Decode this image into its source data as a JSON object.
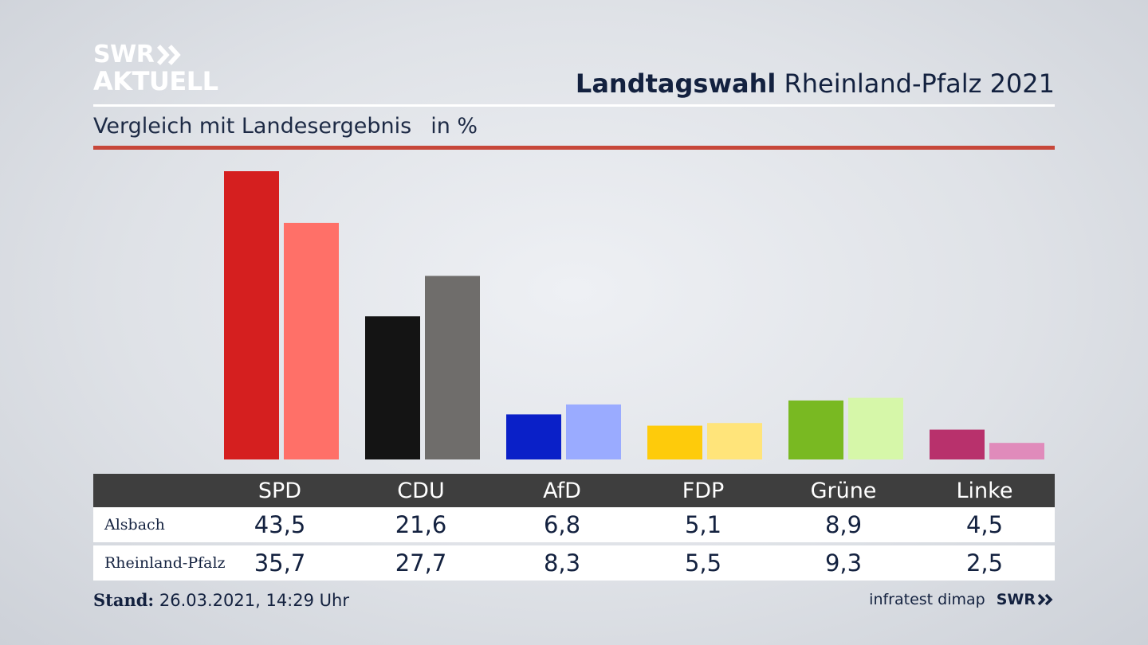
{
  "brand": {
    "logo_line1": "SWR",
    "logo_line2": "AKTUELL",
    "footer_logo": "SWR",
    "source": "infratest dimap"
  },
  "header": {
    "title_bold": "Landtagswahl",
    "title_rest": "Rheinland-Pfalz 2021",
    "subtitle": "Vergleich mit Landesergebnis",
    "unit": "in %"
  },
  "footer": {
    "stand_label": "Stand:",
    "stand_value": "26.03.2021, 14:29 Uhr"
  },
  "chart_data": {
    "type": "bar",
    "categories": [
      "SPD",
      "CDU",
      "AfD",
      "FDP",
      "Grüne",
      "Linke"
    ],
    "series": [
      {
        "name": "Alsbach",
        "values": [
          43.5,
          21.6,
          6.8,
          5.1,
          8.9,
          4.5
        ],
        "colors": [
          "#d51f1f",
          "#141414",
          "#0a20c8",
          "#fecb0b",
          "#79b922",
          "#b8316c"
        ]
      },
      {
        "name": "Rheinland-Pfalz",
        "values": [
          35.7,
          27.7,
          8.3,
          5.5,
          9.3,
          2.5
        ],
        "colors": [
          "#ff7068",
          "#6f6d6b",
          "#9aabff",
          "#ffe47a",
          "#d6f7a9",
          "#e08bbb"
        ]
      }
    ],
    "ylim": [
      0,
      43.5
    ],
    "grid": false,
    "legend": "table-below"
  },
  "table": {
    "row_labels": [
      "Alsbach",
      "Rheinland-Pfalz"
    ],
    "rows": [
      [
        "43,5",
        "21,6",
        "6,8",
        "5,1",
        "8,9",
        "4,5"
      ],
      [
        "35,7",
        "27,7",
        "8,3",
        "5,5",
        "9,3",
        "2,5"
      ]
    ]
  }
}
